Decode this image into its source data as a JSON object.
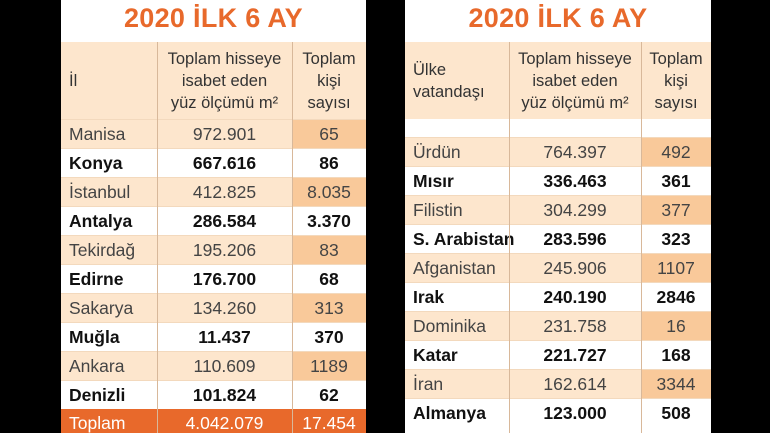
{
  "left": {
    "title": "2020 İLK 6 AY",
    "headers": {
      "col1": "İl",
      "col2_line1": "Toplam hisseye",
      "col2_line2": "isabet eden",
      "col2_line3": "yüz ölçümü m²",
      "col3_line1": "Toplam",
      "col3_line2": "kişi",
      "col3_line3": "sayısı"
    },
    "rows": [
      {
        "name": "Manisa",
        "area": "972.901",
        "count": "65"
      },
      {
        "name": "Konya",
        "area": "667.616",
        "count": "86"
      },
      {
        "name": "İstanbul",
        "area": "412.825",
        "count": "8.035"
      },
      {
        "name": "Antalya",
        "area": "286.584",
        "count": "3.370"
      },
      {
        "name": "Tekirdağ",
        "area": "195.206",
        "count": "83"
      },
      {
        "name": "Edirne",
        "area": "176.700",
        "count": "68"
      },
      {
        "name": "Sakarya",
        "area": "134.260",
        "count": "313"
      },
      {
        "name": "Muğla",
        "area": "11.437",
        "count": "370"
      },
      {
        "name": "Ankara",
        "area": "110.609",
        "count": "1189"
      },
      {
        "name": "Denizli",
        "area": "101.824",
        "count": "62"
      }
    ],
    "total": {
      "name": "Toplam",
      "area": "4.042.079",
      "count": "17.454"
    }
  },
  "right": {
    "title": "2020 İLK 6 AY",
    "headers": {
      "col1_line1": "Ülke",
      "col1_line2": "vatandaşı",
      "col2_line1": "Toplam hisseye",
      "col2_line2": "isabet eden",
      "col2_line3": "yüz ölçümü m²",
      "col3_line1": "Toplam",
      "col3_line2": "kişi",
      "col3_line3": "sayısı"
    },
    "rows": [
      {
        "name": "Ürdün",
        "area": "764.397",
        "count": "492"
      },
      {
        "name": "Mısır",
        "area": "336.463",
        "count": "361"
      },
      {
        "name": "Filistin",
        "area": "304.299",
        "count": "377"
      },
      {
        "name": "S. Arabistan",
        "area": "283.596",
        "count": "323"
      },
      {
        "name": "Afganistan",
        "area": "245.906",
        "count": "1107"
      },
      {
        "name": "Irak",
        "area": "240.190",
        "count": "2846"
      },
      {
        "name": "Dominika",
        "area": "231.758",
        "count": "16"
      },
      {
        "name": "Katar",
        "area": "221.727",
        "count": "168"
      },
      {
        "name": "İran",
        "area": "162.614",
        "count": "3344"
      },
      {
        "name": "Almanya",
        "area": "123.000",
        "count": "508"
      }
    ]
  },
  "colors": {
    "accent": "#e8692b",
    "band": "#fde6cd",
    "highlight": "#f9c99a"
  }
}
